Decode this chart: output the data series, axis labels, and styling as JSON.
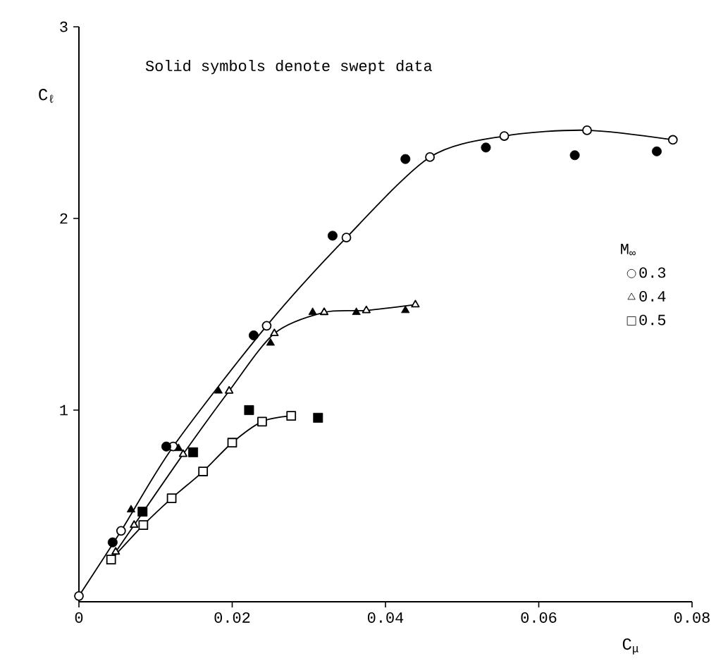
{
  "chart_data": {
    "type": "line",
    "xlabel": "C$_{μ}$",
    "ylabel": "C$_{ℓ}$",
    "legend_title": "M$_{∞}$",
    "annotations": [
      "Solid symbols denote swept data"
    ],
    "xlim": [
      0,
      0.08
    ],
    "ylim": [
      0,
      3
    ],
    "xticks": [
      0,
      0.02,
      0.04,
      0.06,
      0.08
    ],
    "yticks": [
      1,
      2,
      3
    ],
    "legend": "right",
    "grid": false,
    "series": [
      {
        "name": "0.3",
        "marker": "circle",
        "color": "#000000",
        "x": [
          0,
          0.0055,
          0.0123,
          0.0245,
          0.0349,
          0.0458,
          0.0555,
          0.0663,
          0.0775
        ],
        "values": [
          0.03,
          0.37,
          0.81,
          1.44,
          1.9,
          2.32,
          2.43,
          2.46,
          2.41
        ]
      },
      {
        "name": "0.4",
        "marker": "triangle",
        "color": "#000000",
        "x": [
          0.0048,
          0.0072,
          0.0136,
          0.0196,
          0.0255,
          0.032,
          0.0375,
          0.0439
        ],
        "values": [
          0.26,
          0.4,
          0.77,
          1.1,
          1.4,
          1.51,
          1.52,
          1.55
        ]
      },
      {
        "name": "0.5",
        "marker": "square",
        "color": "#000000",
        "x": [
          0.0042,
          0.0084,
          0.0121,
          0.0162,
          0.02,
          0.0239,
          0.0277
        ],
        "values": [
          0.22,
          0.4,
          0.54,
          0.68,
          0.83,
          0.94,
          0.97
        ]
      },
      {
        "type": "scatter",
        "marker": "circle",
        "color": "#000000",
        "x": [
          0.0044,
          0.0114,
          0.0228,
          0.0331,
          0.0426,
          0.0531,
          0.0647,
          0.0754
        ],
        "values": [
          0.31,
          0.81,
          1.39,
          1.91,
          2.31,
          2.37,
          2.33,
          2.35
        ]
      },
      {
        "type": "scatter",
        "marker": "triangle",
        "color": "#000000",
        "x": [
          0.0068,
          0.013,
          0.0182,
          0.025,
          0.0305,
          0.0362,
          0.0426
        ],
        "values": [
          0.48,
          0.8,
          1.1,
          1.35,
          1.51,
          1.51,
          1.52
        ]
      },
      {
        "type": "scatter",
        "marker": "square",
        "color": "#000000",
        "x": [
          0.0083,
          0.0149,
          0.0222,
          0.0312
        ],
        "values": [
          0.47,
          0.78,
          1.0,
          0.96
        ]
      }
    ]
  }
}
